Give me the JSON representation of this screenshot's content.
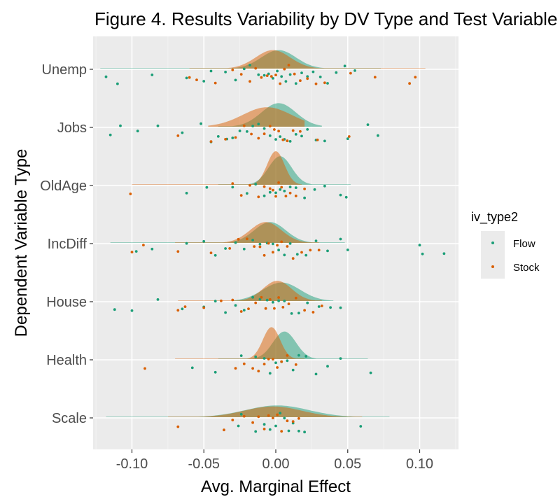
{
  "chart_data": {
    "type": "scatter",
    "subtype": "raincloud",
    "title": "Figure 4. Results Variability by DV Type and Test Variable",
    "xlabel": "Avg. Marginal Effect",
    "ylabel": "Dependent Variable Type",
    "xlim": [
      -0.127,
      0.127
    ],
    "x_ticks": [
      -0.1,
      -0.05,
      0.0,
      0.05,
      0.1
    ],
    "x_tick_labels": [
      "-0.10",
      "-0.05",
      "0.00",
      "0.05",
      "0.10"
    ],
    "categories": [
      "Scale",
      "Health",
      "House",
      "IncDiff",
      "OldAge",
      "Jobs",
      "Unemp"
    ],
    "grid": true,
    "legend": {
      "title": "iv_type2",
      "position": "right"
    },
    "series": [
      {
        "name": "Flow",
        "color": "#1b9e77",
        "density": [
          {
            "category": "Unemp",
            "mean": 0.002,
            "sd": 0.012,
            "peak": 0.55,
            "range": [
              -0.122,
              0.073
            ]
          },
          {
            "category": "Jobs",
            "mean": 0.002,
            "sd": 0.012,
            "peak": 0.7,
            "range": [
              -0.04,
              0.032
            ]
          },
          {
            "category": "OldAge",
            "mean": 0.003,
            "sd": 0.008,
            "peak": 0.85,
            "range": [
              -0.04,
              0.052
            ]
          },
          {
            "category": "IncDiff",
            "mean": -0.004,
            "sd": 0.011,
            "peak": 0.62,
            "range": [
              -0.115,
              0.048
            ]
          },
          {
            "category": "House",
            "mean": 0.004,
            "sd": 0.013,
            "peak": 0.55,
            "range": [
              -0.03,
              0.04
            ]
          },
          {
            "category": "Health",
            "mean": 0.006,
            "sd": 0.008,
            "peak": 0.82,
            "range": [
              -0.04,
              0.064
            ]
          },
          {
            "category": "Scale",
            "mean": 0.001,
            "sd": 0.022,
            "peak": 0.35,
            "range": [
              -0.118,
              0.079
            ]
          }
        ],
        "points": [
          {
            "category": "Unemp",
            "x": [
              -0.118,
              -0.11,
              -0.086,
              -0.062,
              -0.05,
              -0.045,
              -0.035,
              -0.028,
              -0.022,
              -0.018,
              -0.012,
              -0.008,
              -0.005,
              -0.002,
              0.001,
              0.004,
              0.007,
              0.01,
              0.014,
              0.018,
              0.022,
              0.026,
              0.031,
              0.036,
              0.042,
              0.048,
              0.055
            ]
          },
          {
            "category": "Jobs",
            "x": [
              -0.115,
              -0.108,
              -0.096,
              -0.082,
              -0.065,
              -0.052,
              -0.045,
              -0.04,
              -0.034,
              -0.03,
              -0.025,
              -0.02,
              -0.016,
              -0.012,
              -0.008,
              -0.004,
              0.0,
              0.003,
              0.006,
              0.01,
              0.014,
              0.018,
              0.022,
              0.028,
              0.034,
              0.05,
              0.064,
              0.071
            ]
          },
          {
            "category": "OldAge",
            "x": [
              -0.062,
              -0.048,
              -0.03,
              -0.02,
              -0.014,
              -0.008,
              -0.004,
              0.0,
              0.003,
              0.006,
              0.01,
              0.014,
              0.02,
              0.027,
              0.034,
              0.045,
              0.049
            ]
          },
          {
            "category": "IncDiff",
            "x": [
              -0.097,
              -0.086,
              -0.062,
              -0.05,
              -0.042,
              -0.035,
              -0.028,
              -0.022,
              -0.016,
              -0.011,
              -0.006,
              -0.002,
              0.002,
              0.006,
              0.01,
              0.015,
              0.021,
              0.028,
              0.036,
              0.045,
              0.05,
              0.1,
              0.102,
              0.117
            ]
          },
          {
            "category": "House",
            "x": [
              -0.112,
              -0.1,
              -0.082,
              -0.065,
              -0.05,
              -0.042,
              -0.035,
              -0.028,
              -0.022,
              -0.016,
              -0.011,
              -0.006,
              -0.002,
              0.002,
              0.006,
              0.011,
              0.016,
              0.022,
              0.03,
              0.038,
              0.045
            ]
          },
          {
            "category": "Health",
            "x": [
              -0.058,
              -0.042,
              -0.024,
              -0.014,
              -0.008,
              -0.004,
              0.0,
              0.004,
              0.008,
              0.012,
              0.016,
              0.021,
              0.028,
              0.036,
              0.045,
              0.066
            ]
          },
          {
            "category": "Scale",
            "x": [
              -0.026,
              -0.024,
              -0.014,
              -0.008,
              -0.004,
              0.0,
              0.003,
              0.006,
              0.009,
              0.012,
              0.016,
              0.02,
              0.059
            ]
          }
        ]
      },
      {
        "name": "Stock",
        "color": "#d95f02",
        "density": [
          {
            "category": "Unemp",
            "mean": -0.002,
            "sd": 0.012,
            "peak": 0.55,
            "range": [
              -0.06,
              0.104
            ]
          },
          {
            "category": "Jobs",
            "mean": -0.006,
            "sd": 0.017,
            "peak": 0.58,
            "range": [
              -0.047,
              0.02
            ]
          },
          {
            "category": "OldAge",
            "mean": 0.0,
            "sd": 0.006,
            "peak": 1.0,
            "range": [
              -0.1,
              0.018
            ]
          },
          {
            "category": "IncDiff",
            "mean": -0.007,
            "sd": 0.011,
            "peak": 0.62,
            "range": [
              -0.07,
              0.03
            ]
          },
          {
            "category": "House",
            "mean": 0.001,
            "sd": 0.01,
            "peak": 0.6,
            "range": [
              -0.068,
              0.032
            ]
          },
          {
            "category": "Health",
            "mean": -0.003,
            "sd": 0.006,
            "peak": 0.95,
            "range": [
              -0.07,
              0.02
            ]
          },
          {
            "category": "Scale",
            "mean": -0.002,
            "sd": 0.02,
            "peak": 0.32,
            "range": [
              -0.075,
              0.06
            ]
          }
        ],
        "points": [
          {
            "category": "Unemp",
            "x": [
              -0.06,
              -0.055,
              -0.042,
              -0.03,
              -0.024,
              -0.018,
              -0.014,
              -0.01,
              -0.006,
              -0.003,
              0.0,
              0.003,
              0.006,
              0.009,
              0.013,
              0.017,
              0.022,
              0.028,
              0.034,
              0.052,
              0.069,
              0.093,
              0.097
            ]
          },
          {
            "category": "Jobs",
            "x": [
              -0.068,
              -0.045,
              -0.035,
              -0.028,
              -0.022,
              -0.017,
              -0.012,
              -0.008,
              -0.004,
              -0.001,
              0.002,
              0.005,
              0.008,
              0.012,
              0.017,
              0.029,
              0.051
            ]
          },
          {
            "category": "OldAge",
            "x": [
              -0.101,
              -0.03,
              -0.024,
              -0.018,
              -0.012,
              -0.008,
              -0.004,
              -0.002,
              0.0,
              0.002,
              0.004,
              0.007,
              0.01,
              0.014,
              0.02
            ]
          },
          {
            "category": "IncDiff",
            "x": [
              -0.1,
              -0.092,
              -0.068,
              -0.045,
              -0.032,
              -0.026,
              -0.02,
              -0.015,
              -0.011,
              -0.008,
              -0.005,
              -0.002,
              0.001,
              0.004,
              0.008,
              0.012,
              0.018,
              0.024,
              0.03
            ]
          },
          {
            "category": "House",
            "x": [
              -0.068,
              -0.063,
              -0.05,
              -0.038,
              -0.03,
              -0.024,
              -0.019,
              -0.014,
              -0.01,
              -0.007,
              -0.004,
              -0.001,
              0.002,
              0.005,
              0.009,
              0.014,
              0.02,
              0.026,
              0.032
            ]
          },
          {
            "category": "Health",
            "x": [
              -0.091,
              -0.028,
              -0.022,
              -0.016,
              -0.012,
              -0.008,
              -0.005,
              -0.002,
              0.001,
              0.004,
              0.008,
              0.014
            ]
          },
          {
            "category": "Scale",
            "x": [
              -0.068,
              -0.036,
              -0.03,
              -0.022,
              -0.016,
              -0.012,
              -0.008,
              -0.005,
              -0.002,
              0.001,
              0.004,
              0.008,
              0.012,
              0.016
            ]
          }
        ]
      }
    ]
  }
}
